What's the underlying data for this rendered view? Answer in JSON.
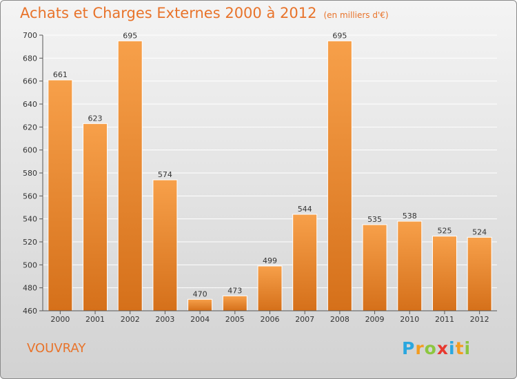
{
  "chart_data": {
    "type": "bar",
    "title": "Achats et Charges Externes 2000 à 2012",
    "unit": "(en milliers d'€)",
    "categories": [
      "2000",
      "2001",
      "2002",
      "2003",
      "2004",
      "2005",
      "2006",
      "2007",
      "2008",
      "2009",
      "2010",
      "2011",
      "2012"
    ],
    "values": [
      661,
      623,
      695,
      574,
      470,
      473,
      499,
      544,
      695,
      535,
      538,
      525,
      524
    ],
    "ylim": [
      460,
      700
    ],
    "yticks": [
      460,
      480,
      500,
      520,
      540,
      560,
      580,
      600,
      620,
      640,
      660,
      680,
      700
    ],
    "grid": true,
    "bar_color_top": "#f7a04a",
    "bar_color_bottom": "#d5701a"
  },
  "location": "VOUVRAY",
  "logo": {
    "letters": [
      "P",
      "r",
      "o",
      "x",
      "i",
      "t",
      "i"
    ],
    "colors": [
      "#2aa7df",
      "#f39c1f",
      "#8cc63f",
      "#e8392f",
      "#2aa7df",
      "#f39c1f",
      "#8cc63f"
    ]
  }
}
